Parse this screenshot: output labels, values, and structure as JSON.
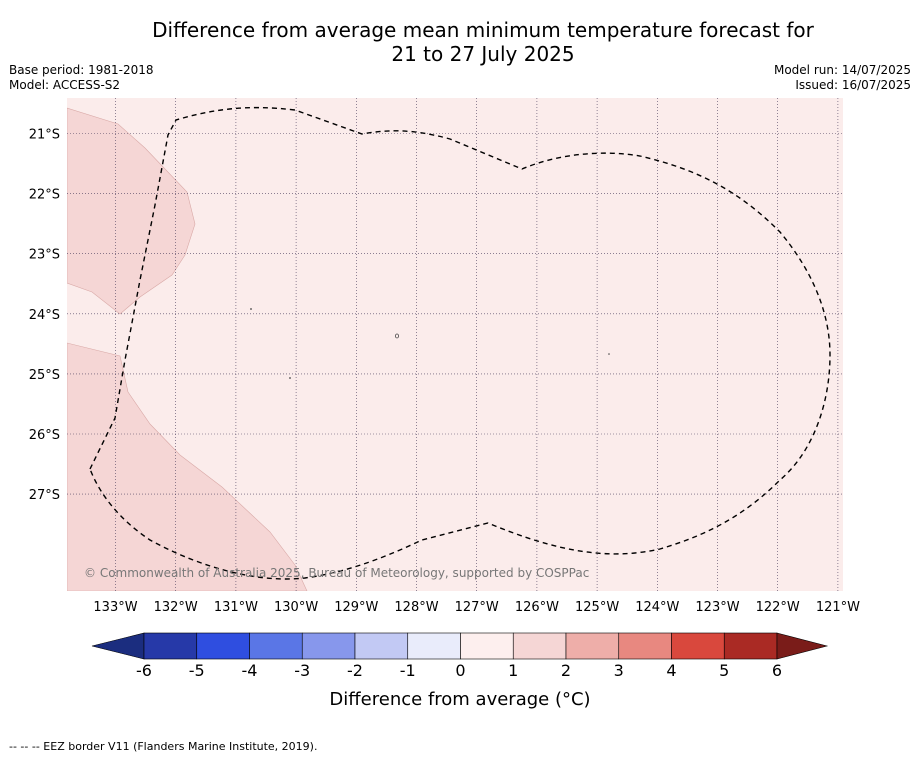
{
  "header": {
    "title_line1": "Difference from average mean minimum temperature forecast for",
    "title_line2": "21 to 27 July 2025",
    "base_period": "Base period: 1981-2018",
    "model": "Model: ACCESS-S2",
    "model_run": "Model run: 14/07/2025",
    "issued": "Issued: 16/07/2025"
  },
  "map": {
    "ocean_color": "#fbeceb",
    "land_color": "#f5d6d5",
    "lon_ticks": [
      "133°W",
      "132°W",
      "131°W",
      "130°W",
      "129°W",
      "128°W",
      "127°W",
      "126°W",
      "125°W",
      "124°W",
      "123°W",
      "122°W",
      "121°W"
    ],
    "lat_ticks": [
      "21°S",
      "22°S",
      "23°S",
      "24°S",
      "25°S",
      "26°S",
      "27°S"
    ],
    "copyright": "© Commonwealth of Australia 2025, Bureau of Meteorology, supported by COSPPac"
  },
  "colorbar": {
    "title": "Difference from average (°C)",
    "ticks": [
      "-6",
      "-5",
      "-4",
      "-3",
      "-2",
      "-1",
      "0",
      "1",
      "2",
      "3",
      "4",
      "5",
      "6"
    ],
    "colors": [
      "#2639a8",
      "#2f4ee0",
      "#5a76e6",
      "#8797ec",
      "#c2c9f4",
      "#e9ecfb",
      "#fdefee",
      "#f5d6d5",
      "#eeaea9",
      "#e88880",
      "#d9483d",
      "#aa2a24"
    ],
    "under_color": "#1b2d7f",
    "over_color": "#7a1c19"
  },
  "footnote": "--  --  -- EEZ border V11 (Flanders Marine Institute, 2019)."
}
